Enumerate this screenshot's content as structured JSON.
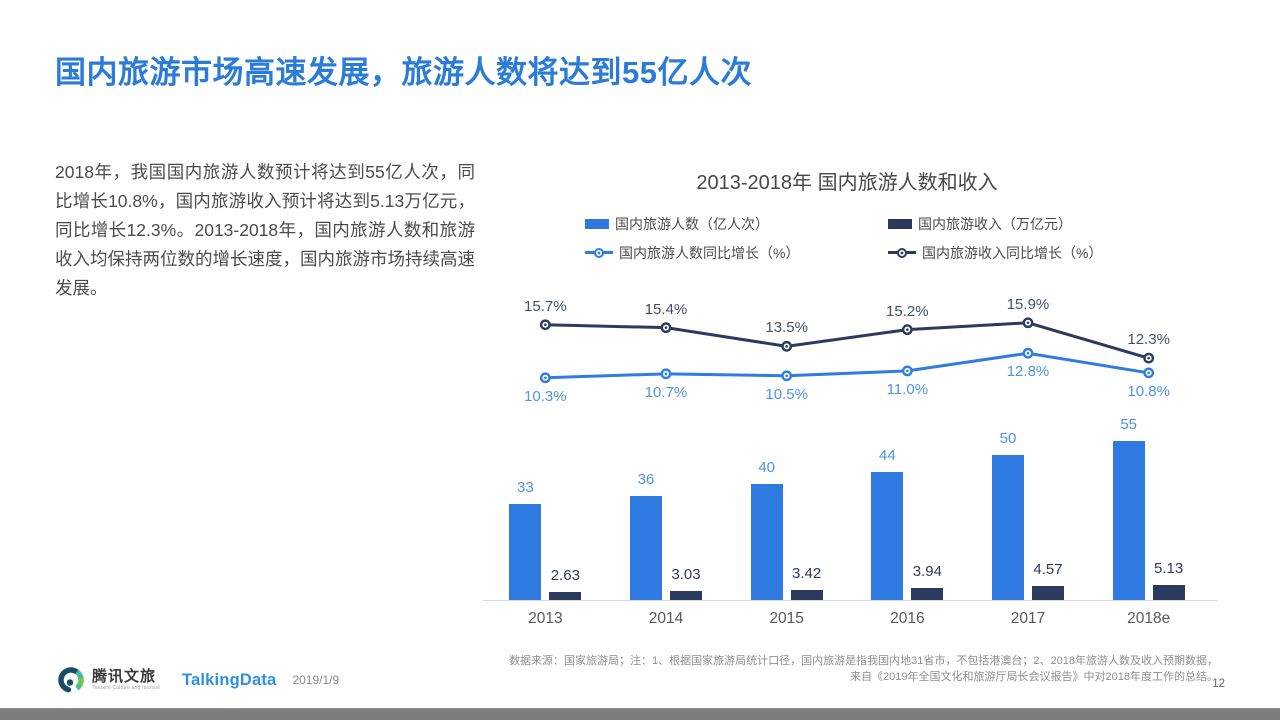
{
  "slide": {
    "title": "国内旅游市场高速发展，旅游人数将达到55亿人次",
    "body_text": "2018年，我国国内旅游人数预计将达到55亿人次，同比增长10.8%，国内旅游收入预计将达到5.13万亿元，同比增长12.3%。2013-2018年，国内旅游人数和旅游收入均保持两位数的增长速度，国内旅游市场持续高速发展。",
    "footnote_line1": "数据来源：国家旅游局；注：1、根据国家旅游局统计口径，国内旅游是指我国内地31省市，不包括港澳台；2、2018年旅游人数及收入预期数据，",
    "footnote_line2": "来自《2019年全国文化和旅游厅局长会议报告》中对2018年度工作的总结。",
    "page_number": "12",
    "date": "2019/1/9"
  },
  "brand": {
    "tencent_logo_text": "腾讯文旅",
    "tencent_logo_subtext": "Tencent Culture and tourism",
    "talkingdata_logo_text": "TalkingData"
  },
  "colors": {
    "title_blue": "#2b7bd8",
    "bar_blue": "#2e7ae0",
    "bar_navy": "#2b3a5e",
    "line_blue": "#2f7de2",
    "line_navy": "#2b3a5e",
    "label_light_blue": "#4f94e3",
    "label_navy": "#2e3a5c",
    "axis_gray": "#d9d9d9",
    "talkingdata_blue": "#2f8fe0"
  },
  "chart_data": {
    "type": "combo_bar_line",
    "title": "2013-2018年 国内旅游人数和收入",
    "categories": [
      "2013",
      "2014",
      "2015",
      "2016",
      "2017",
      "2018e"
    ],
    "series": [
      {
        "name": "国内旅游人数（亿人次）",
        "type": "bar",
        "color": "#2e7ae0",
        "label_color": "#4f94e3",
        "values": [
          33,
          36,
          40,
          44,
          50,
          55
        ],
        "labels": [
          "33",
          "36",
          "40",
          "44",
          "50",
          "55"
        ]
      },
      {
        "name": "国内旅游收入（万亿元）",
        "type": "bar",
        "color": "#2b3a5e",
        "label_color": "#2e3a5c",
        "values": [
          2.63,
          3.03,
          3.42,
          3.94,
          4.57,
          5.13
        ],
        "labels": [
          "2.63",
          "3.03",
          "3.42",
          "3.94",
          "4.57",
          "5.13"
        ]
      },
      {
        "name": "国内旅游人数同比增长（%）",
        "type": "line",
        "color": "#2f7de2",
        "label_color": "#4f94e3",
        "label_position": "below",
        "values": [
          10.3,
          10.7,
          10.5,
          11.0,
          12.8,
          10.8
        ],
        "labels": [
          "10.3%",
          "10.7%",
          "10.5%",
          "11.0%",
          "12.8%",
          "10.8%"
        ]
      },
      {
        "name": "国内旅游收入同比增长（%）",
        "type": "line",
        "color": "#2b3a5e",
        "label_color": "#44506a",
        "label_position": "above",
        "values": [
          15.7,
          15.4,
          13.5,
          15.2,
          15.9,
          12.3
        ],
        "labels": [
          "15.7%",
          "15.4%",
          "13.5%",
          "15.2%",
          "15.9%",
          "12.3%"
        ]
      }
    ],
    "legend_position": "top",
    "grid": false,
    "x_axis_line": true,
    "value_axes_visible": false
  }
}
